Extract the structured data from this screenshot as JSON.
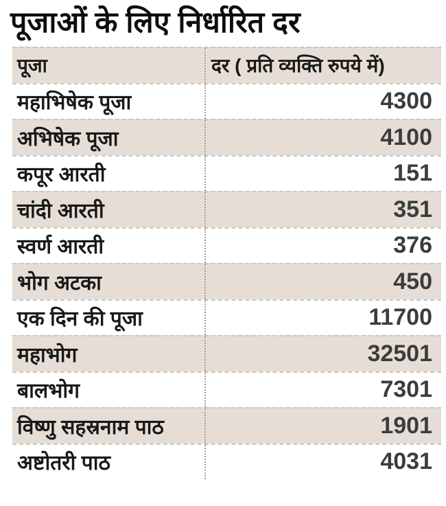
{
  "chart_data": {
    "type": "table",
    "title": "पूजाओं के लिए निर्धारित दर",
    "columns": {
      "puja": "पूजा",
      "rate": "दर ( प्रति व्यक्ति रुपये में)"
    },
    "rows": [
      {
        "name": "महाभिषेक पूजा",
        "rate": 4300
      },
      {
        "name": "अभिषेक पूजा",
        "rate": 4100
      },
      {
        "name": "कपूर आरती",
        "rate": 151
      },
      {
        "name": "चांदी आरती",
        "rate": 351
      },
      {
        "name": "स्वर्ण आरती",
        "rate": 376
      },
      {
        "name": "भोग अटका",
        "rate": 450
      },
      {
        "name": "एक दिन की पूजा",
        "rate": 11700
      },
      {
        "name": "महाभोग",
        "rate": 32501
      },
      {
        "name": "बालभोग",
        "rate": 7301
      },
      {
        "name": "विष्णु सहस्रनाम पाठ",
        "rate": 1901
      },
      {
        "name": "अष्टोतरी पाठ",
        "rate": 4031
      }
    ],
    "layout": {
      "striped": true,
      "header_shaded": true,
      "first_data_row_shaded": false,
      "value_alignment": "right",
      "column_divider": "dotted",
      "row_separator": "dashed"
    }
  },
  "colors": {
    "row-shade": "#e6ded6",
    "divider": "#a19b95",
    "separator": "#ccc5be",
    "title-text": "#0d0d0d",
    "body-text": "#191919",
    "number-text": "#3c3c3c",
    "background": "#ffffff"
  }
}
